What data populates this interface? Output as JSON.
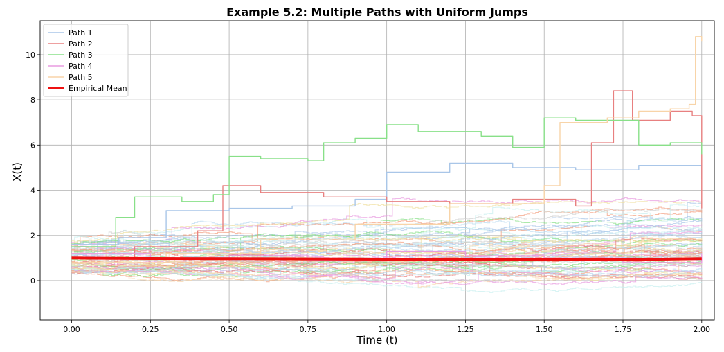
{
  "chart_data": {
    "type": "line",
    "title": "Example 5.2: Multiple Paths with Uniform Jumps",
    "xlabel": "Time (t)",
    "ylabel": "X(t)",
    "xlim": [
      -0.1,
      2.04
    ],
    "ylim": [
      -1.75,
      11.5
    ],
    "x_ticks": [
      0.0,
      0.25,
      0.5,
      0.75,
      1.0,
      1.25,
      1.5,
      1.75,
      2.0
    ],
    "x_tick_labels": [
      "0.00",
      "0.25",
      "0.50",
      "0.75",
      "1.00",
      "1.25",
      "1.50",
      "1.75",
      "2.00"
    ],
    "y_ticks": [
      0,
      2,
      4,
      6,
      8,
      10
    ],
    "y_tick_labels": [
      "0",
      "2",
      "4",
      "6",
      "8",
      "10"
    ],
    "grid": true,
    "legend_position": "top-left",
    "legend": [
      {
        "label": "Path 1",
        "color": "#a9c6e8"
      },
      {
        "label": "Path 2",
        "color": "#e88080"
      },
      {
        "label": "Path 3",
        "color": "#88e088"
      },
      {
        "label": "Path 4",
        "color": "#e89be0"
      },
      {
        "label": "Path 5",
        "color": "#f8d4a8"
      },
      {
        "label": "Empirical Mean",
        "color": "#ee1111"
      }
    ],
    "series": [
      {
        "name": "Path 1",
        "color": "#a9c6e8",
        "x": [
          0.0,
          0.15,
          0.3,
          0.5,
          0.7,
          0.9,
          1.0,
          1.2,
          1.4,
          1.6,
          1.8,
          2.0
        ],
        "y": [
          1.6,
          1.9,
          3.1,
          3.2,
          3.3,
          3.6,
          4.8,
          5.2,
          5.0,
          4.9,
          5.1,
          4.5
        ]
      },
      {
        "name": "Path 2",
        "color": "#e88080",
        "x": [
          0.0,
          0.2,
          0.4,
          0.48,
          0.6,
          0.8,
          1.0,
          1.2,
          1.4,
          1.6,
          1.65,
          1.72,
          1.78,
          1.9,
          1.97,
          2.0
        ],
        "y": [
          1.0,
          1.5,
          2.2,
          4.2,
          3.9,
          3.7,
          3.5,
          3.4,
          3.6,
          3.3,
          6.1,
          8.4,
          7.1,
          7.5,
          7.3,
          3.2
        ]
      },
      {
        "name": "Path 3",
        "color": "#88e088",
        "x": [
          0.0,
          0.14,
          0.2,
          0.35,
          0.45,
          0.5,
          0.6,
          0.75,
          0.8,
          0.9,
          1.0,
          1.1,
          1.3,
          1.4,
          1.5,
          1.6,
          1.8,
          1.9,
          2.0
        ],
        "y": [
          1.5,
          2.8,
          3.7,
          3.5,
          3.8,
          5.5,
          5.4,
          5.3,
          6.1,
          6.3,
          6.9,
          6.6,
          6.4,
          5.9,
          7.2,
          7.1,
          6.0,
          6.1,
          5.6
        ]
      },
      {
        "name": "Path 4",
        "color": "#e89be0",
        "x": [
          0.0,
          0.25,
          0.5,
          0.75,
          1.0,
          1.25,
          1.5,
          1.75,
          2.0
        ],
        "y": [
          1.2,
          1.0,
          1.1,
          0.9,
          1.3,
          1.1,
          1.0,
          0.8,
          1.2
        ]
      },
      {
        "name": "Path 5",
        "color": "#f8d4a8",
        "x": [
          0.0,
          0.3,
          0.6,
          0.9,
          1.2,
          1.5,
          1.55,
          1.7,
          1.8,
          1.9,
          1.96,
          1.98,
          2.0
        ],
        "y": [
          0.8,
          1.2,
          1.8,
          2.5,
          3.4,
          4.2,
          7.0,
          7.2,
          7.5,
          7.6,
          7.8,
          10.8,
          10.6
        ]
      },
      {
        "name": "Empirical Mean",
        "color": "#ee1111",
        "linewidth": 4,
        "x": [
          0.0,
          0.25,
          0.5,
          0.75,
          1.0,
          1.25,
          1.5,
          1.75,
          2.0
        ],
        "y": [
          1.0,
          0.98,
          0.97,
          0.96,
          0.95,
          0.93,
          0.92,
          0.93,
          0.97
        ]
      }
    ]
  }
}
